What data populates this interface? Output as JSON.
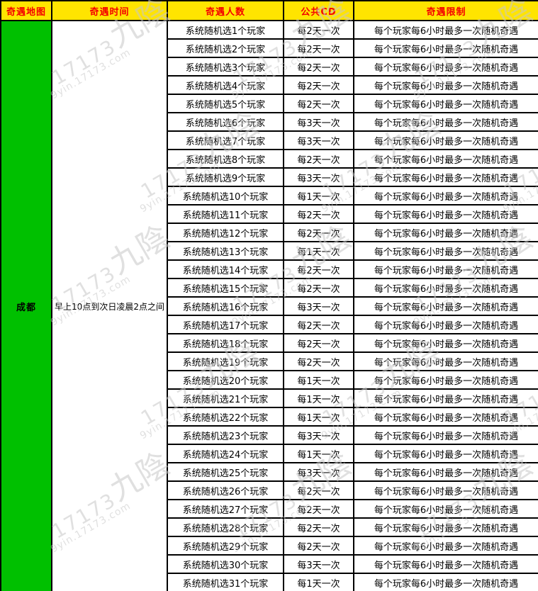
{
  "colors": {
    "header_bg": "#FFE400",
    "header_text": "#F40000",
    "map_cell_bg": "#00C000",
    "border": "#000000",
    "body_text": "#000000",
    "watermark": "#C8C8C8"
  },
  "watermark": {
    "brand": "17173",
    "logo": "九陰",
    "url": "9yin.17173.com"
  },
  "table": {
    "headers": [
      "奇遇地图",
      "奇遇时间",
      "奇遇人数",
      "公共CD",
      "奇遇限制"
    ],
    "map_name": "成都",
    "time_range": "早上10点到次日凌晨2点之间",
    "rows": [
      {
        "players": "系统随机选1个玩家",
        "cd": "每2天一次",
        "limit": "每个玩家每6小时最多一次随机奇遇"
      },
      {
        "players": "系统随机选2个玩家",
        "cd": "每2天一次",
        "limit": "每个玩家每6小时最多一次随机奇遇"
      },
      {
        "players": "系统随机选3个玩家",
        "cd": "每2天一次",
        "limit": "每个玩家每6小时最多一次随机奇遇"
      },
      {
        "players": "系统随机选4个玩家",
        "cd": "每2天一次",
        "limit": "每个玩家每6小时最多一次随机奇遇"
      },
      {
        "players": "系统随机选5个玩家",
        "cd": "每2天一次",
        "limit": "每个玩家每6小时最多一次随机奇遇"
      },
      {
        "players": "系统随机选6个玩家",
        "cd": "每3天一次",
        "limit": "每个玩家每6小时最多一次随机奇遇"
      },
      {
        "players": "系统随机选7个玩家",
        "cd": "每3天一次",
        "limit": "每个玩家每6小时最多一次随机奇遇"
      },
      {
        "players": "系统随机选8个玩家",
        "cd": "每2天一次",
        "limit": "每个玩家每6小时最多一次随机奇遇"
      },
      {
        "players": "系统随机选9个玩家",
        "cd": "每3天一次",
        "limit": "每个玩家每6小时最多一次随机奇遇"
      },
      {
        "players": "系统随机选10个玩家",
        "cd": "每1天一次",
        "limit": "每个玩家每6小时最多一次随机奇遇"
      },
      {
        "players": "系统随机选11个玩家",
        "cd": "每2天一次",
        "limit": "每个玩家每6小时最多一次随机奇遇"
      },
      {
        "players": "系统随机选12个玩家",
        "cd": "每2天一次",
        "limit": "每个玩家每6小时最多一次随机奇遇"
      },
      {
        "players": "系统随机选13个玩家",
        "cd": "每1天一次",
        "limit": "每个玩家每6小时最多一次随机奇遇"
      },
      {
        "players": "系统随机选14个玩家",
        "cd": "每2天一次",
        "limit": "每个玩家每6小时最多一次随机奇遇"
      },
      {
        "players": "系统随机选15个玩家",
        "cd": "每2天一次",
        "limit": "每个玩家每6小时最多一次随机奇遇"
      },
      {
        "players": "系统随机选16个玩家",
        "cd": "每3天一次",
        "limit": "每个玩家每6小时最多一次随机奇遇"
      },
      {
        "players": "系统随机选17个玩家",
        "cd": "每2天一次",
        "limit": "每个玩家每6小时最多一次随机奇遇"
      },
      {
        "players": "系统随机选18个玩家",
        "cd": "每2天一次",
        "limit": "每个玩家每6小时最多一次随机奇遇"
      },
      {
        "players": "系统随机选19个玩家",
        "cd": "每2天一次",
        "limit": "每个玩家每6小时最多一次随机奇遇"
      },
      {
        "players": "系统随机选20个玩家",
        "cd": "每1天一次",
        "limit": "每个玩家每6小时最多一次随机奇遇"
      },
      {
        "players": "系统随机选21个玩家",
        "cd": "每1天一次",
        "limit": "每个玩家每6小时最多一次随机奇遇"
      },
      {
        "players": "系统随机选22个玩家",
        "cd": "每1天一次",
        "limit": "每个玩家每6小时最多一次随机奇遇"
      },
      {
        "players": "系统随机选23个玩家",
        "cd": "每3天一次",
        "limit": "每个玩家每6小时最多一次随机奇遇"
      },
      {
        "players": "系统随机选24个玩家",
        "cd": "每1天一次",
        "limit": "每个玩家每6小时最多一次随机奇遇"
      },
      {
        "players": "系统随机选25个玩家",
        "cd": "每3天一次",
        "limit": "每个玩家每6小时最多一次随机奇遇"
      },
      {
        "players": "系统随机选26个玩家",
        "cd": "每2天一次",
        "limit": "每个玩家每6小时最多一次随机奇遇"
      },
      {
        "players": "系统随机选27个玩家",
        "cd": "每2天一次",
        "limit": "每个玩家每6小时最多一次随机奇遇"
      },
      {
        "players": "系统随机选28个玩家",
        "cd": "每2天一次",
        "limit": "每个玩家每6小时最多一次随机奇遇"
      },
      {
        "players": "系统随机选29个玩家",
        "cd": "每2天一次",
        "limit": "每个玩家每6小时最多一次随机奇遇"
      },
      {
        "players": "系统随机选30个玩家",
        "cd": "每3天一次",
        "limit": "每个玩家每6小时最多一次随机奇遇"
      },
      {
        "players": "系统随机选31个玩家",
        "cd": "每1天一次",
        "limit": "每个玩家每6小时最多一次随机奇遇"
      }
    ]
  }
}
